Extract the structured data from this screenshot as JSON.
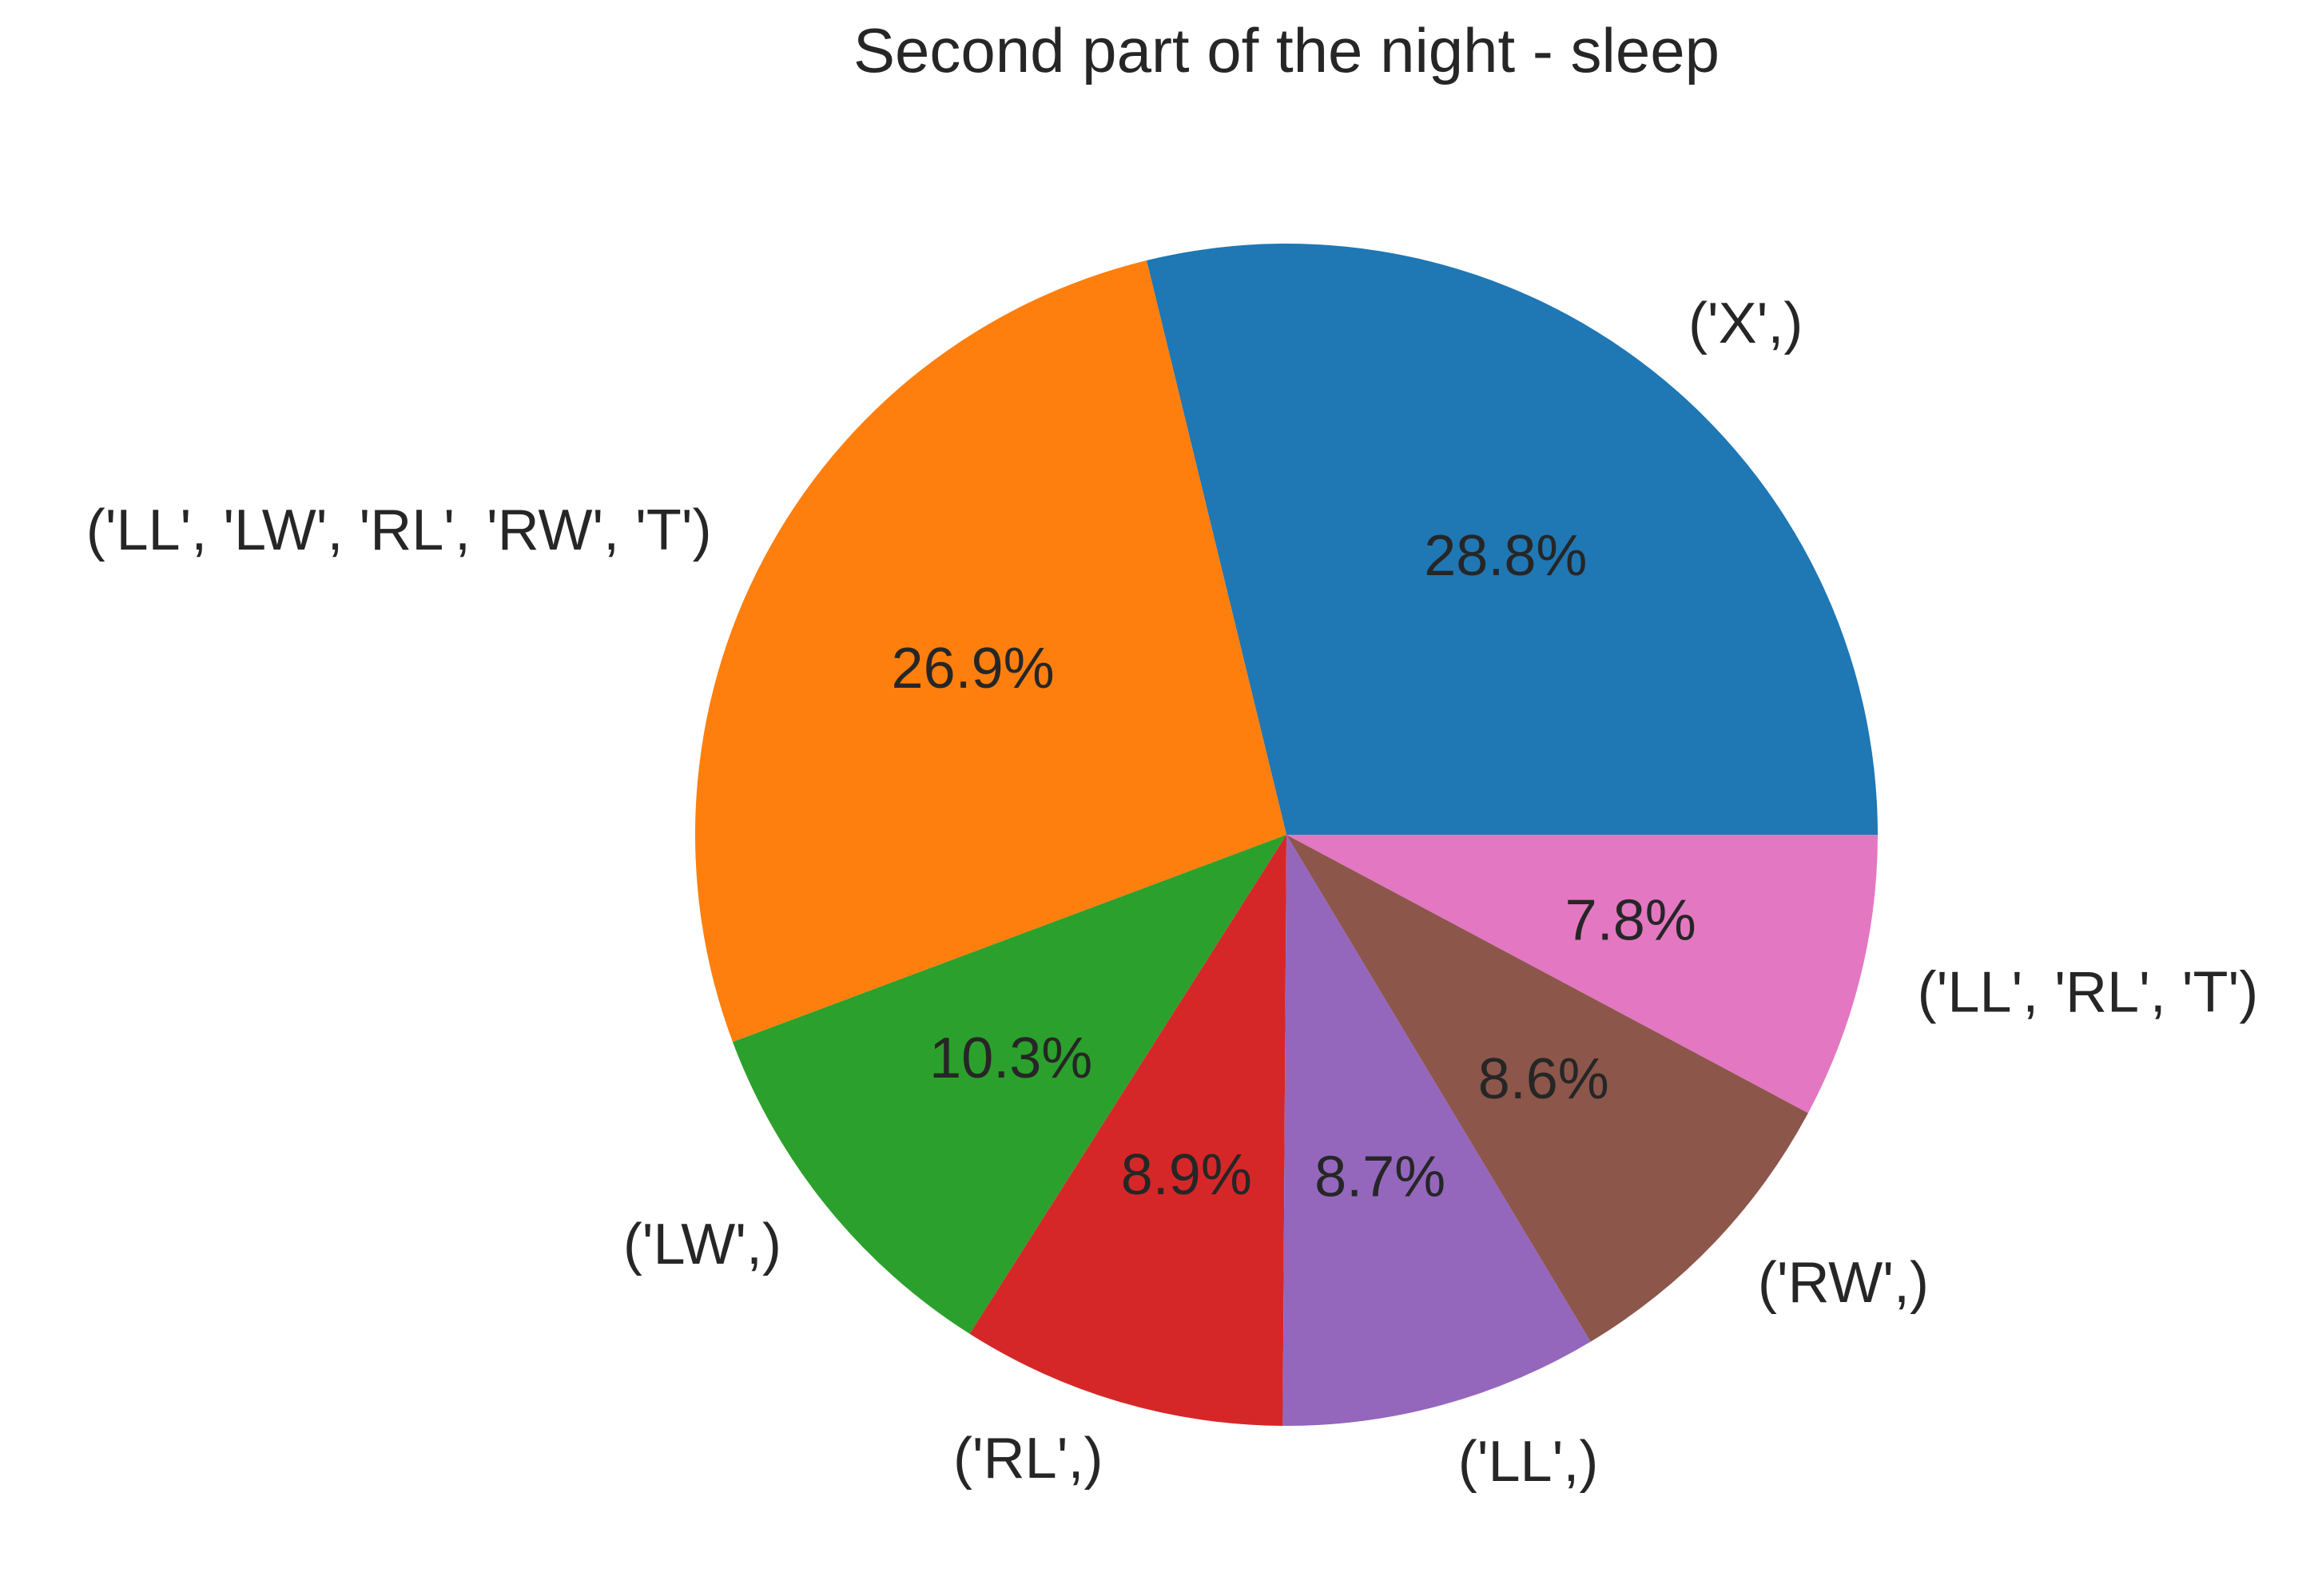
{
  "chart_data": {
    "type": "pie",
    "title": "Second part of the night - sleep",
    "start_angle_deg": 0,
    "direction": "counterclockwise",
    "slices": [
      {
        "label": "('X',)",
        "value": 28.8,
        "pct_label": "28.8%",
        "color": "#1f77b4"
      },
      {
        "label": "('LL', 'LW', 'RL', 'RW', 'T')",
        "value": 26.9,
        "pct_label": "26.9%",
        "color": "#ff7f0e"
      },
      {
        "label": "('LW',)",
        "value": 10.3,
        "pct_label": "10.3%",
        "color": "#2ca02c"
      },
      {
        "label": "('RL',)",
        "value": 8.9,
        "pct_label": "8.9%",
        "color": "#d62728"
      },
      {
        "label": "('LL',)",
        "value": 8.7,
        "pct_label": "8.7%",
        "color": "#9467bd"
      },
      {
        "label": "('RW',)",
        "value": 8.6,
        "pct_label": "8.6%",
        "color": "#8c564b"
      },
      {
        "label": "('LL', 'RL', 'T')",
        "value": 7.8,
        "pct_label": "7.8%",
        "color": "#e377c2"
      }
    ]
  }
}
